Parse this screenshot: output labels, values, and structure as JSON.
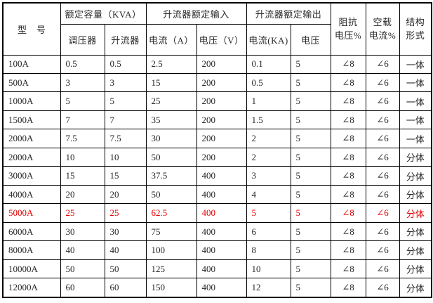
{
  "table": {
    "header": {
      "model": "型　号",
      "rated_capacity": "额定容量（KVA）",
      "regulator": "调压器",
      "booster": "升流器",
      "rated_input": "升流器额定输入",
      "input_current": "电流（A）",
      "input_voltage": "电压（V）",
      "rated_output": "升流器额定输出",
      "output_current": "电流(KA)",
      "output_voltage": "电压",
      "impedance_line1": "阻抗",
      "impedance_line2": "电压%",
      "no_load_line1": "空载",
      "no_load_line2": "电流%",
      "structure_line1": "结构",
      "structure_line2": "形式"
    },
    "highlight_color": "#e60000",
    "text_color": "#262626",
    "border_color": "#000000",
    "rows": [
      {
        "highlight": false,
        "cells": [
          "100A",
          "0.5",
          "0.5",
          "2.5",
          "200",
          "0.1",
          "5",
          "∠8",
          "∠6",
          "一体"
        ]
      },
      {
        "highlight": false,
        "cells": [
          "500A",
          "3",
          "3",
          "15",
          "200",
          "0.5",
          "5",
          "∠8",
          "∠6",
          "一体"
        ]
      },
      {
        "highlight": false,
        "cells": [
          "1000A",
          "5",
          "5",
          "25",
          "200",
          "1",
          "5",
          "∠8",
          "∠6",
          "一体"
        ]
      },
      {
        "highlight": false,
        "cells": [
          "1500A",
          "7",
          "7",
          "35",
          "200",
          "1.5",
          "5",
          "∠8",
          "∠6",
          "一体"
        ]
      },
      {
        "highlight": false,
        "cells": [
          "2000A",
          "7.5",
          "7.5",
          "30",
          "200",
          "2",
          "5",
          "∠8",
          "∠6",
          "一体"
        ]
      },
      {
        "highlight": false,
        "cells": [
          "2000A",
          "10",
          "10",
          "50",
          "200",
          "2",
          "5",
          "∠8",
          "∠6",
          "分体"
        ]
      },
      {
        "highlight": false,
        "cells": [
          "3000A",
          "15",
          "15",
          "37.5",
          "400",
          "3",
          "5",
          "∠8",
          "∠6",
          "分体"
        ]
      },
      {
        "highlight": false,
        "cells": [
          "4000A",
          "20",
          "20",
          "50",
          "400",
          "4",
          "5",
          "∠8",
          "∠6",
          "分体"
        ]
      },
      {
        "highlight": true,
        "cells": [
          "5000A",
          "25",
          "25",
          "62.5",
          "400",
          "5",
          "5",
          "∠8",
          "∠6",
          "分体"
        ]
      },
      {
        "highlight": false,
        "cells": [
          "6000A",
          "30",
          "30",
          "75",
          "400",
          "6",
          "5",
          "∠8",
          "∠6",
          "分体"
        ]
      },
      {
        "highlight": false,
        "cells": [
          "8000A",
          "40",
          "40",
          "100",
          "400",
          "8",
          "5",
          "∠8",
          "∠6",
          "分体"
        ]
      },
      {
        "highlight": false,
        "cells": [
          "10000A",
          "50",
          "50",
          "125",
          "400",
          "10",
          "5",
          "∠8",
          "∠6",
          "分体"
        ]
      },
      {
        "highlight": false,
        "cells": [
          "12000A",
          "60",
          "60",
          "150",
          "400",
          "12",
          "5",
          "∠8",
          "∠6",
          "分体"
        ]
      }
    ]
  }
}
